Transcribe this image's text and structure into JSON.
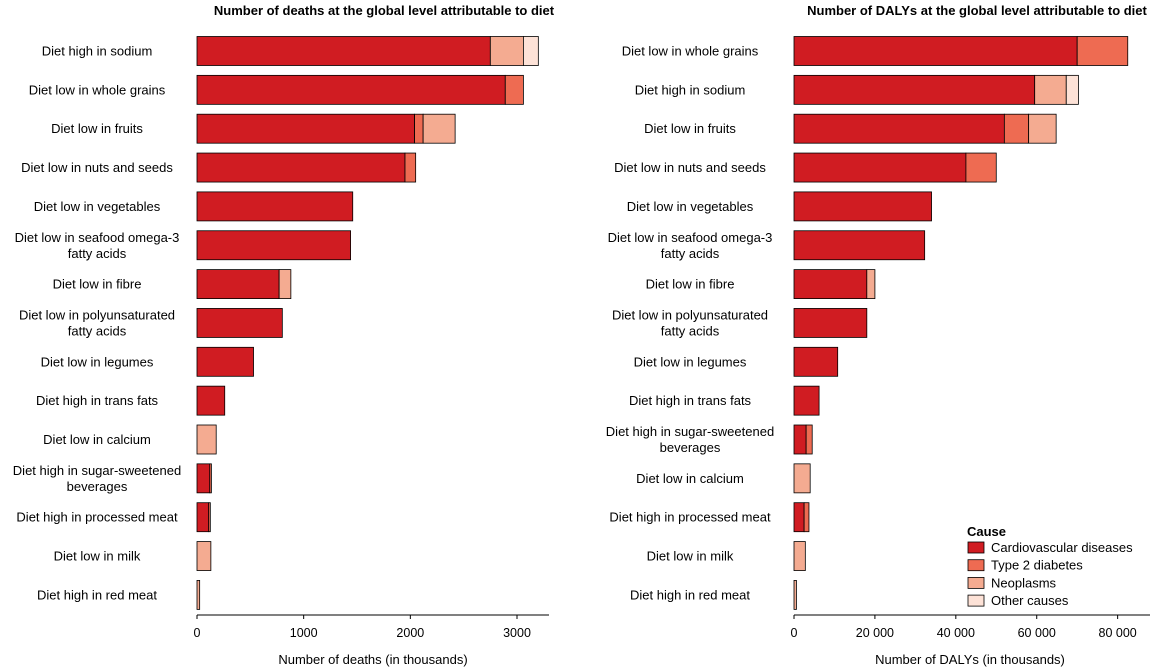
{
  "legend": {
    "title": "Cause",
    "entries": [
      {
        "key": "cvd",
        "label": "Cardiovascular diseases",
        "color": "#d01c22"
      },
      {
        "key": "t2d",
        "label": "Type 2 diabetes",
        "color": "#ee6b52"
      },
      {
        "key": "neo",
        "label": "Neoplasms",
        "color": "#f4ab91"
      },
      {
        "key": "oth",
        "label": "Other causes",
        "color": "#fde2d7"
      }
    ]
  },
  "chart_data": [
    {
      "type": "bar",
      "orientation": "horizontal",
      "stacked": true,
      "title": "Number of deaths at the global level attributable to diet",
      "xlabel": "Number of deaths (in thousands)",
      "xlim": [
        0,
        3300
      ],
      "xticks": [
        0,
        1000,
        2000,
        3000
      ],
      "xtick_labels": [
        "0",
        "1000",
        "2000",
        "3000"
      ],
      "categories": [
        [
          "Diet high in sodium"
        ],
        [
          "Diet low in whole grains"
        ],
        [
          "Diet low in fruits"
        ],
        [
          "Diet low in nuts and seeds"
        ],
        [
          "Diet low in vegetables"
        ],
        [
          "Diet low in seafood omega-3",
          "fatty acids"
        ],
        [
          "Diet low in fibre"
        ],
        [
          "Diet low in polyunsaturated",
          "fatty acids"
        ],
        [
          "Diet low in legumes"
        ],
        [
          "Diet high in trans fats"
        ],
        [
          "Diet low in calcium"
        ],
        [
          "Diet high in sugar-sweetened",
          "beverages"
        ],
        [
          "Diet high in processed meat"
        ],
        [
          "Diet low in milk"
        ],
        [
          "Diet high in red meat"
        ]
      ],
      "series": [
        {
          "name": "Cardiovascular diseases",
          "values": [
            2750,
            2890,
            2040,
            1950,
            1460,
            1440,
            770,
            800,
            530,
            260,
            0,
            120,
            110,
            0,
            0
          ]
        },
        {
          "name": "Type 2 diabetes",
          "values": [
            0,
            170,
            80,
            100,
            0,
            0,
            0,
            0,
            0,
            0,
            0,
            15,
            15,
            0,
            0
          ]
        },
        {
          "name": "Neoplasms",
          "values": [
            310,
            0,
            300,
            0,
            0,
            0,
            110,
            0,
            0,
            0,
            180,
            0,
            0,
            130,
            25
          ]
        },
        {
          "name": "Other causes",
          "values": [
            140,
            0,
            0,
            0,
            0,
            0,
            0,
            0,
            0,
            0,
            0,
            0,
            0,
            0,
            0
          ]
        }
      ]
    },
    {
      "type": "bar",
      "orientation": "horizontal",
      "stacked": true,
      "title": "Number of DALYs at the global level attributable to diet",
      "xlabel": "Number of DALYs (in thousands)",
      "xlim": [
        0,
        88000
      ],
      "xticks": [
        0,
        20000,
        40000,
        60000,
        80000
      ],
      "xtick_labels": [
        "0",
        "20 000",
        "40 000",
        "60 000",
        "80 000"
      ],
      "categories": [
        [
          "Diet low in whole grains"
        ],
        [
          "Diet high in sodium"
        ],
        [
          "Diet low in fruits"
        ],
        [
          "Diet low in nuts and seeds"
        ],
        [
          "Diet low in vegetables"
        ],
        [
          "Diet low in seafood omega-3",
          "fatty acids"
        ],
        [
          "Diet low in fibre"
        ],
        [
          "Diet low in polyunsaturated",
          "fatty acids"
        ],
        [
          "Diet low in legumes"
        ],
        [
          "Diet high in trans fats"
        ],
        [
          "Diet high in sugar-sweetened",
          "beverages"
        ],
        [
          "Diet low in calcium"
        ],
        [
          "Diet high in processed meat"
        ],
        [
          "Diet low in milk"
        ],
        [
          "Diet high in red meat"
        ]
      ],
      "series": [
        {
          "name": "Cardiovascular diseases",
          "values": [
            70000,
            59500,
            52000,
            42500,
            34000,
            32300,
            18000,
            18000,
            10800,
            6200,
            3000,
            0,
            2500,
            0,
            0
          ]
        },
        {
          "name": "Type 2 diabetes",
          "values": [
            12500,
            0,
            6000,
            7500,
            0,
            0,
            0,
            0,
            0,
            0,
            1500,
            0,
            1200,
            0,
            0
          ]
        },
        {
          "name": "Neoplasms",
          "values": [
            0,
            7800,
            6800,
            0,
            0,
            0,
            2000,
            0,
            0,
            0,
            0,
            4000,
            0,
            2800,
            600
          ]
        },
        {
          "name": "Other causes",
          "values": [
            0,
            3000,
            0,
            0,
            0,
            0,
            0,
            0,
            0,
            0,
            0,
            0,
            0,
            0,
            0
          ]
        }
      ]
    }
  ]
}
